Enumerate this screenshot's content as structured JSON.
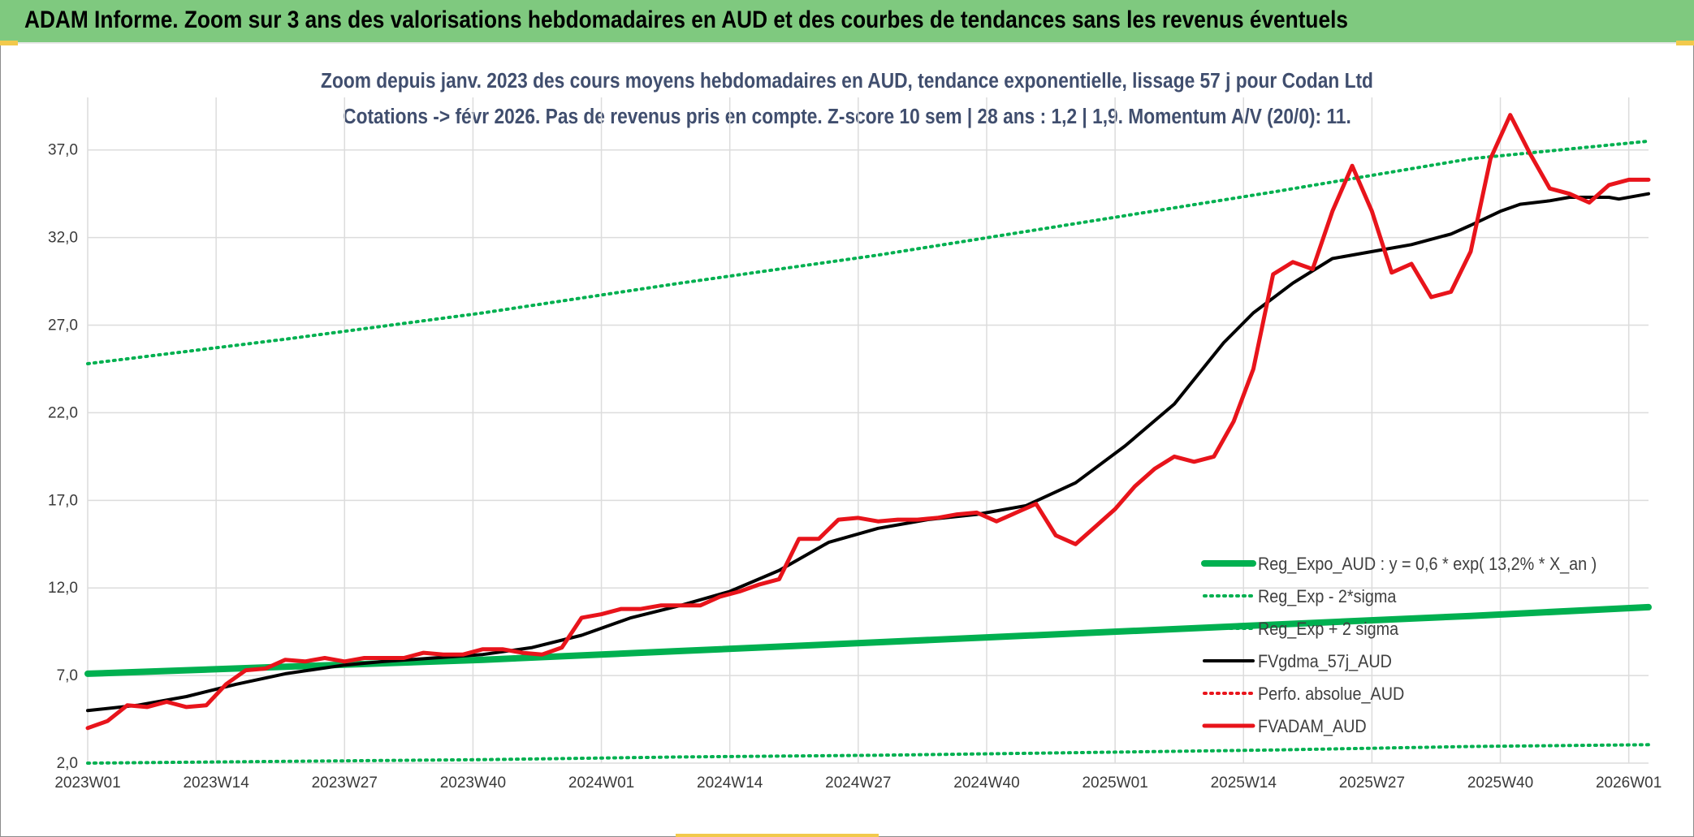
{
  "banner": {
    "title": "ADAM Informe. Zoom sur 3 ans des valorisations hebdomadaires en AUD et des courbes de tendances sans les revenus éventuels"
  },
  "chart_data": {
    "type": "line",
    "title": "",
    "subtitle_lines": [
      "Zoom depuis janv. 2023 des cours moyens hebdomadaires en AUD, tendance exponentielle, lissage 57 j pour Codan Ltd",
      "Cotations -> févr 2026. Pas de revenus pris en compte. Z-score 10 sem | 28 ans : 1,2 | 1,9. Momentum A/V (20/0): 11."
    ],
    "xlabel": "",
    "ylabel": "",
    "x_ticks": [
      "2023W01",
      "2023W14",
      "2023W27",
      "2023W40",
      "2024W01",
      "2024W14",
      "2024W27",
      "2024W40",
      "2025W01",
      "2025W14",
      "2025W27",
      "2025W40",
      "2026W01"
    ],
    "y_ticks": [
      "2,0",
      "7,0",
      "12,0",
      "17,0",
      "22,0",
      "27,0",
      "32,0",
      "37,0"
    ],
    "ylim": [
      2,
      40
    ],
    "grid": true,
    "legend_position": "bottom-right, inside plot",
    "colors": {
      "green": "#00b050",
      "black": "#000000",
      "red": "#e8141b",
      "grid": "#dcdcdc"
    },
    "series": [
      {
        "name": "Reg_Expo_AUD : y = 0,6 * exp( 13,2% *  X_an )",
        "style": "solid-thick",
        "color": "#00b050",
        "x": [
          0,
          20,
          40,
          60,
          80,
          100,
          120,
          140,
          158
        ],
        "values": [
          7.1,
          7.5,
          7.9,
          8.4,
          8.9,
          9.4,
          9.9,
          10.4,
          10.9
        ]
      },
      {
        "name": "Reg_Exp - 2*sigma",
        "style": "dotted",
        "color": "#00b050",
        "x": [
          0,
          20,
          40,
          60,
          80,
          100,
          120,
          140,
          158
        ],
        "values": [
          2.0,
          2.1,
          2.2,
          2.35,
          2.45,
          2.6,
          2.75,
          2.95,
          3.05
        ]
      },
      {
        "name": "Reg_Exp + 2 sigma",
        "style": "dotted",
        "color": "#00b050",
        "x": [
          0,
          20,
          40,
          60,
          80,
          100,
          120,
          140,
          158
        ],
        "values": [
          24.8,
          26.2,
          27.7,
          29.4,
          31.0,
          32.8,
          34.6,
          36.5,
          37.5
        ]
      },
      {
        "name": "FVgdma_57j_AUD",
        "style": "solid",
        "color": "#000000",
        "x": [
          0,
          5,
          10,
          15,
          20,
          26,
          30,
          35,
          40,
          45,
          50,
          55,
          60,
          65,
          70,
          75,
          80,
          85,
          90,
          95,
          100,
          105,
          110,
          115,
          118,
          122,
          126,
          130,
          134,
          138,
          140,
          143,
          145,
          148,
          150,
          152,
          154,
          155,
          158
        ],
        "values": [
          5.0,
          5.3,
          5.8,
          6.5,
          7.1,
          7.6,
          7.8,
          8.0,
          8.2,
          8.6,
          9.3,
          10.3,
          11.0,
          11.8,
          13.0,
          14.6,
          15.4,
          15.9,
          16.2,
          16.7,
          18.0,
          20.1,
          22.5,
          26.0,
          27.7,
          29.4,
          30.8,
          31.2,
          31.6,
          32.2,
          32.7,
          33.5,
          33.9,
          34.1,
          34.3,
          34.3,
          34.3,
          34.2,
          34.5
        ]
      },
      {
        "name": "Perfo. absolue_AUD",
        "style": "dotted",
        "color": "#e8141b",
        "x": [],
        "values": []
      },
      {
        "name": "FVADAM_AUD",
        "style": "solid-thick",
        "color": "#e8141b",
        "x": [
          0,
          2,
          4,
          6,
          8,
          10,
          12,
          14,
          16,
          18,
          20,
          22,
          24,
          26,
          28,
          30,
          32,
          34,
          36,
          38,
          40,
          42,
          44,
          46,
          48,
          50,
          52,
          54,
          56,
          58,
          60,
          62,
          64,
          66,
          68,
          70,
          72,
          74,
          76,
          78,
          80,
          82,
          84,
          86,
          88,
          90,
          92,
          94,
          96,
          98,
          100,
          102,
          104,
          106,
          108,
          110,
          112,
          114,
          116,
          118,
          120,
          122,
          124,
          126,
          128,
          130,
          132,
          134,
          136,
          138,
          140,
          142,
          144,
          146,
          148,
          150,
          152,
          154,
          156,
          158
        ],
        "values": [
          4.0,
          4.4,
          5.3,
          5.2,
          5.5,
          5.2,
          5.3,
          6.5,
          7.3,
          7.4,
          7.9,
          7.8,
          8.0,
          7.8,
          8.0,
          8.0,
          8.0,
          8.3,
          8.2,
          8.2,
          8.5,
          8.5,
          8.3,
          8.2,
          8.6,
          10.3,
          10.5,
          10.8,
          10.8,
          11.0,
          11.0,
          11.0,
          11.5,
          11.8,
          12.2,
          12.5,
          14.8,
          14.8,
          15.9,
          16.0,
          15.8,
          15.9,
          15.9,
          16.0,
          16.2,
          16.3,
          15.8,
          16.3,
          16.8,
          15.0,
          14.5,
          15.5,
          16.5,
          17.8,
          18.8,
          19.5,
          19.2,
          19.5,
          21.5,
          24.5,
          29.9,
          30.6,
          30.2,
          33.5,
          36.1,
          33.5,
          30.0,
          30.5,
          28.6,
          28.9,
          31.2,
          36.5,
          39.0,
          36.8,
          34.8,
          34.5,
          34.0,
          35.0,
          35.3,
          35.3
        ]
      }
    ]
  }
}
